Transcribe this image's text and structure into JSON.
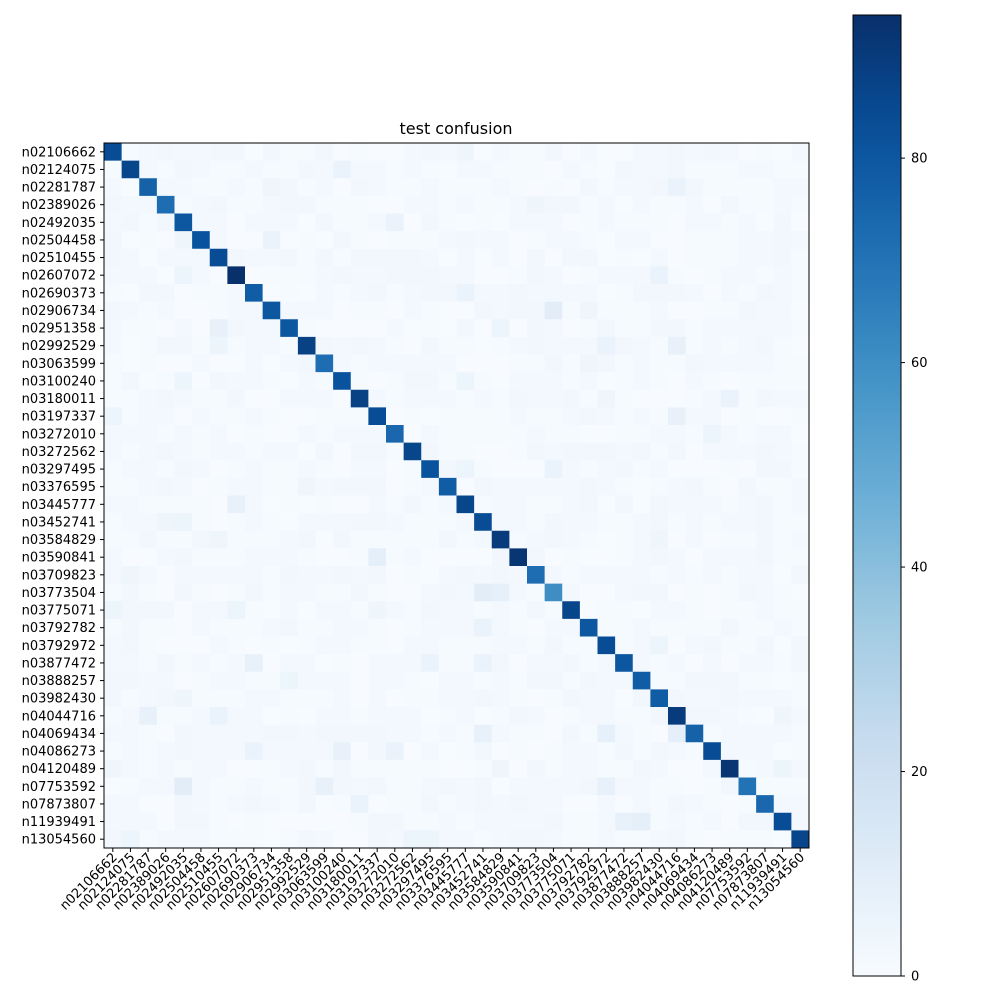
{
  "chart_data": {
    "type": "heatmap",
    "title": "test confusion",
    "xlabel": "",
    "ylabel": "",
    "colormap": "Blues",
    "labels": [
      "n02106662",
      "n02124075",
      "n02281787",
      "n02389026",
      "n02492035",
      "n02504458",
      "n02510455",
      "n02607072",
      "n02690373",
      "n02906734",
      "n02951358",
      "n02992529",
      "n03063599",
      "n03100240",
      "n03180011",
      "n03197337",
      "n03272010",
      "n03272562",
      "n03297495",
      "n03376595",
      "n03445777",
      "n03452741",
      "n03584829",
      "n03590841",
      "n03709823",
      "n03773504",
      "n03775071",
      "n03792782",
      "n03792972",
      "n03877472",
      "n03888257",
      "n03982430",
      "n04044716",
      "n04069434",
      "n04086273",
      "n04120489",
      "n07753592",
      "n07873807",
      "n11939491",
      "n13054560"
    ],
    "diagonal": [
      84,
      86,
      76,
      72,
      80,
      82,
      84,
      94,
      78,
      80,
      80,
      88,
      72,
      82,
      88,
      84,
      74,
      86,
      82,
      78,
      86,
      84,
      90,
      92,
      72,
      60,
      86,
      80,
      84,
      80,
      78,
      78,
      90,
      76,
      84,
      92,
      70,
      74,
      84,
      86
    ],
    "off_diagonal": [
      {
        "row": 0,
        "col": 20,
        "value": 4
      },
      {
        "row": 1,
        "col": 13,
        "value": 6
      },
      {
        "row": 2,
        "col": 9,
        "value": 4
      },
      {
        "row": 2,
        "col": 32,
        "value": 6
      },
      {
        "row": 3,
        "col": 24,
        "value": 4
      },
      {
        "row": 4,
        "col": 16,
        "value": 6
      },
      {
        "row": 5,
        "col": 9,
        "value": 6
      },
      {
        "row": 5,
        "col": 4,
        "value": 4
      },
      {
        "row": 7,
        "col": 4,
        "value": 5
      },
      {
        "row": 7,
        "col": 31,
        "value": 6
      },
      {
        "row": 8,
        "col": 20,
        "value": 6
      },
      {
        "row": 9,
        "col": 25,
        "value": 10
      },
      {
        "row": 9,
        "col": 27,
        "value": 4
      },
      {
        "row": 10,
        "col": 6,
        "value": 7
      },
      {
        "row": 10,
        "col": 22,
        "value": 5
      },
      {
        "row": 11,
        "col": 6,
        "value": 5
      },
      {
        "row": 11,
        "col": 28,
        "value": 6
      },
      {
        "row": 11,
        "col": 32,
        "value": 7
      },
      {
        "row": 12,
        "col": 27,
        "value": 4
      },
      {
        "row": 13,
        "col": 4,
        "value": 5
      },
      {
        "row": 13,
        "col": 20,
        "value": 5
      },
      {
        "row": 14,
        "col": 28,
        "value": 4
      },
      {
        "row": 14,
        "col": 35,
        "value": 6
      },
      {
        "row": 15,
        "col": 0,
        "value": 5
      },
      {
        "row": 15,
        "col": 32,
        "value": 7
      },
      {
        "row": 16,
        "col": 34,
        "value": 5
      },
      {
        "row": 18,
        "col": 20,
        "value": 5
      },
      {
        "row": 18,
        "col": 25,
        "value": 6
      },
      {
        "row": 19,
        "col": 11,
        "value": 4
      },
      {
        "row": 20,
        "col": 7,
        "value": 7
      },
      {
        "row": 21,
        "col": 3,
        "value": 4
      },
      {
        "row": 21,
        "col": 4,
        "value": 5
      },
      {
        "row": 22,
        "col": 6,
        "value": 4
      },
      {
        "row": 22,
        "col": 31,
        "value": 4
      },
      {
        "row": 23,
        "col": 15,
        "value": 9
      },
      {
        "row": 24,
        "col": 1,
        "value": 4
      },
      {
        "row": 25,
        "col": 21,
        "value": 10
      },
      {
        "row": 25,
        "col": 22,
        "value": 8
      },
      {
        "row": 26,
        "col": 0,
        "value": 5
      },
      {
        "row": 26,
        "col": 15,
        "value": 4
      },
      {
        "row": 26,
        "col": 7,
        "value": 5
      },
      {
        "row": 27,
        "col": 21,
        "value": 6
      },
      {
        "row": 28,
        "col": 31,
        "value": 5
      },
      {
        "row": 29,
        "col": 8,
        "value": 7
      },
      {
        "row": 29,
        "col": 18,
        "value": 6
      },
      {
        "row": 29,
        "col": 21,
        "value": 6
      },
      {
        "row": 30,
        "col": 10,
        "value": 5
      },
      {
        "row": 31,
        "col": 4,
        "value": 4
      },
      {
        "row": 32,
        "col": 2,
        "value": 7
      },
      {
        "row": 32,
        "col": 6,
        "value": 6
      },
      {
        "row": 32,
        "col": 38,
        "value": 4
      },
      {
        "row": 33,
        "col": 21,
        "value": 7
      },
      {
        "row": 33,
        "col": 28,
        "value": 8
      },
      {
        "row": 33,
        "col": 32,
        "value": 9
      },
      {
        "row": 34,
        "col": 8,
        "value": 6
      },
      {
        "row": 34,
        "col": 13,
        "value": 7
      },
      {
        "row": 34,
        "col": 16,
        "value": 6
      },
      {
        "row": 35,
        "col": 0,
        "value": 4
      },
      {
        "row": 35,
        "col": 22,
        "value": 4
      },
      {
        "row": 35,
        "col": 38,
        "value": 5
      },
      {
        "row": 36,
        "col": 4,
        "value": 10
      },
      {
        "row": 36,
        "col": 12,
        "value": 7
      },
      {
        "row": 36,
        "col": 28,
        "value": 7
      },
      {
        "row": 37,
        "col": 14,
        "value": 6
      },
      {
        "row": 38,
        "col": 29,
        "value": 7
      },
      {
        "row": 38,
        "col": 30,
        "value": 9
      },
      {
        "row": 39,
        "col": 1,
        "value": 5
      },
      {
        "row": 39,
        "col": 17,
        "value": 5
      },
      {
        "row": 39,
        "col": 18,
        "value": 5
      }
    ],
    "background_range": [
      0,
      3
    ],
    "colorbar": {
      "min": 0,
      "max": 94,
      "ticks": [
        0,
        20,
        40,
        60,
        80
      ]
    },
    "grid": false,
    "legend": "colorbar-right"
  }
}
